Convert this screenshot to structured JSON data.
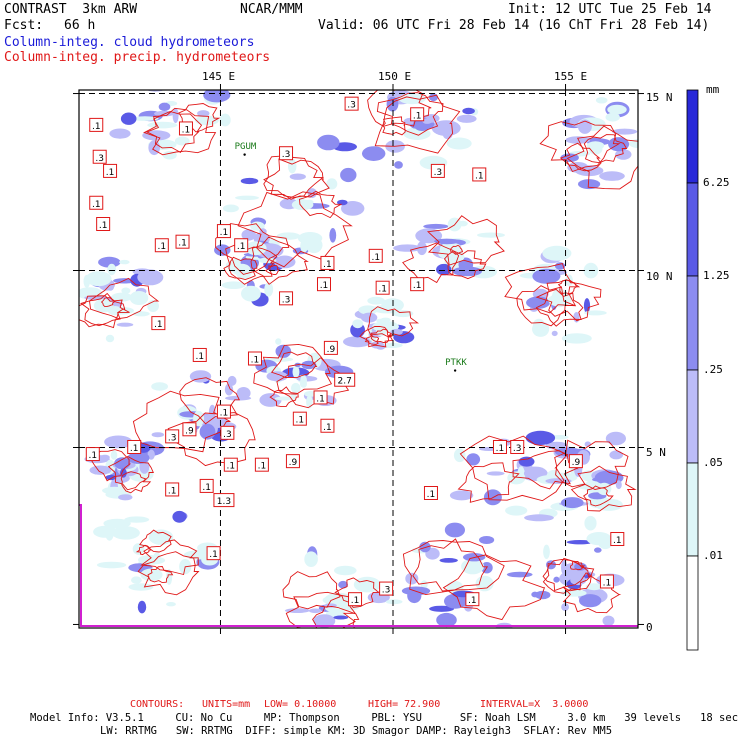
{
  "header": {
    "title": "CONTRAST  3km ARW",
    "center": "NCAR/MMM",
    "init": "Init: 12 UTC Tue 25 Feb 14",
    "fcst_label": "Fcst:",
    "fcst_value": "66 h",
    "valid": "Valid: 06 UTC Fri 28 Feb 14 (16 ChT Fri 28 Feb 14)",
    "field1": "Column-integ. cloud hydrometeors",
    "field2": "Column-integ. precip. hydrometeors"
  },
  "colors": {
    "field1": "#1a1ad8",
    "field2": "#e01818",
    "contour": "#e01818",
    "frame": "#000000",
    "grid": "#000000",
    "land_boundary": "#d020d0"
  },
  "axes": {
    "lon_labels": [
      "145 E",
      "150 E",
      "155 E"
    ],
    "lat_labels": [
      "15 N",
      "10 N",
      "5 N",
      "0"
    ],
    "lons": [
      145,
      150,
      155
    ],
    "lats": [
      15,
      10,
      5,
      0
    ],
    "lon_range": [
      140.9,
      157.1
    ],
    "lat_range": [
      -0.1,
      15.1
    ]
  },
  "stations": [
    {
      "id": "PGUM",
      "lon": 145.7,
      "lat": 13.5
    },
    {
      "id": "PTKK",
      "lon": 151.8,
      "lat": 7.4
    }
  ],
  "contour_labels": [
    {
      "text": ".1",
      "lon": 141.4,
      "lat": 14.1
    },
    {
      "text": ".3",
      "lon": 141.5,
      "lat": 13.2
    },
    {
      "text": ".1",
      "lon": 141.8,
      "lat": 12.8
    },
    {
      "text": ".1",
      "lon": 144.0,
      "lat": 14.0
    },
    {
      "text": ".3",
      "lon": 146.9,
      "lat": 13.3
    },
    {
      "text": ".3",
      "lon": 148.8,
      "lat": 14.7
    },
    {
      "text": ".1",
      "lon": 150.7,
      "lat": 14.4
    },
    {
      "text": ".3",
      "lon": 151.3,
      "lat": 12.8
    },
    {
      "text": ".1",
      "lon": 152.5,
      "lat": 12.7
    },
    {
      "text": ".1",
      "lon": 141.4,
      "lat": 11.9
    },
    {
      "text": ".1",
      "lon": 141.6,
      "lat": 11.3
    },
    {
      "text": ".1",
      "lon": 143.3,
      "lat": 10.7
    },
    {
      "text": ".1",
      "lon": 143.9,
      "lat": 10.8
    },
    {
      "text": ".1",
      "lon": 145.1,
      "lat": 11.1
    },
    {
      "text": ".1",
      "lon": 145.6,
      "lat": 10.7
    },
    {
      "text": ".1",
      "lon": 148.1,
      "lat": 10.2
    },
    {
      "text": ".1",
      "lon": 149.5,
      "lat": 10.4
    },
    {
      "text": ".3",
      "lon": 146.9,
      "lat": 9.2
    },
    {
      "text": ".1",
      "lon": 148.0,
      "lat": 9.6
    },
    {
      "text": ".1",
      "lon": 149.7,
      "lat": 9.5
    },
    {
      "text": ".1",
      "lon": 150.7,
      "lat": 9.6
    },
    {
      "text": ".1",
      "lon": 143.2,
      "lat": 8.5
    },
    {
      "text": ".1",
      "lon": 144.4,
      "lat": 7.6
    },
    {
      "text": ".1",
      "lon": 146.0,
      "lat": 7.5
    },
    {
      "text": ".9",
      "lon": 148.2,
      "lat": 7.8
    },
    {
      "text": "2.7",
      "lon": 148.6,
      "lat": 6.9
    },
    {
      "text": ".1",
      "lon": 147.9,
      "lat": 6.4
    },
    {
      "text": ".1",
      "lon": 145.1,
      "lat": 6.0
    },
    {
      "text": ".3",
      "lon": 145.2,
      "lat": 5.4
    },
    {
      "text": ".9",
      "lon": 144.1,
      "lat": 5.5
    },
    {
      "text": ".3",
      "lon": 143.6,
      "lat": 5.3
    },
    {
      "text": ".1",
      "lon": 147.3,
      "lat": 5.8
    },
    {
      "text": ".1",
      "lon": 148.1,
      "lat": 5.6
    },
    {
      "text": ".1",
      "lon": 142.5,
      "lat": 5.0
    },
    {
      "text": ".1",
      "lon": 141.3,
      "lat": 4.8
    },
    {
      "text": ".1",
      "lon": 145.3,
      "lat": 4.5
    },
    {
      "text": ".1",
      "lon": 146.2,
      "lat": 4.5
    },
    {
      "text": ".9",
      "lon": 147.1,
      "lat": 4.6
    },
    {
      "text": ".1",
      "lon": 143.6,
      "lat": 3.8
    },
    {
      "text": ".1",
      "lon": 144.6,
      "lat": 3.9
    },
    {
      "text": ".1",
      "lon": 151.1,
      "lat": 3.7
    },
    {
      "text": ".1",
      "lon": 153.1,
      "lat": 5.0
    },
    {
      "text": ".3",
      "lon": 153.6,
      "lat": 5.0
    },
    {
      "text": ".9",
      "lon": 155.3,
      "lat": 4.6
    },
    {
      "text": "1.3",
      "lon": 145.1,
      "lat": 3.5
    },
    {
      "text": ".1",
      "lon": 144.8,
      "lat": 2.0
    },
    {
      "text": ".1",
      "lon": 148.9,
      "lat": 0.7
    },
    {
      "text": ".3",
      "lon": 149.8,
      "lat": 1.0
    },
    {
      "text": ".1",
      "lon": 152.3,
      "lat": 0.7
    },
    {
      "text": ".1",
      "lon": 156.2,
      "lat": 1.2
    },
    {
      "text": ".1",
      "lon": 156.5,
      "lat": 2.4
    }
  ],
  "colorbar": {
    "unit": "mm",
    "labels": [
      "6.25",
      "1.25",
      ".25",
      ".05",
      ".01"
    ],
    "fills": [
      "#2828d8",
      "#5a5ae6",
      "#8c8cf0",
      "#bcbcf8",
      "#def6f8",
      "#ffffff"
    ]
  },
  "footer": {
    "contours_label": "CONTOURS:",
    "units": "UNITS=mm",
    "low": "LOW= 0.10000",
    "high": "HIGH= 72.900",
    "interval": "INTERVAL=X  3.0000",
    "model_line1": "Model Info: V3.5.1     CU: No Cu     MP: Thompson     PBL: YSU      SF: Noah LSM     3.0 km   39 levels   18 sec",
    "model_line2": "LW: RRTMG   SW: RRTMG  DIFF: simple KM: 3D Smagor DAMP: Rayleigh3  SFLAY: Rev MM5"
  }
}
